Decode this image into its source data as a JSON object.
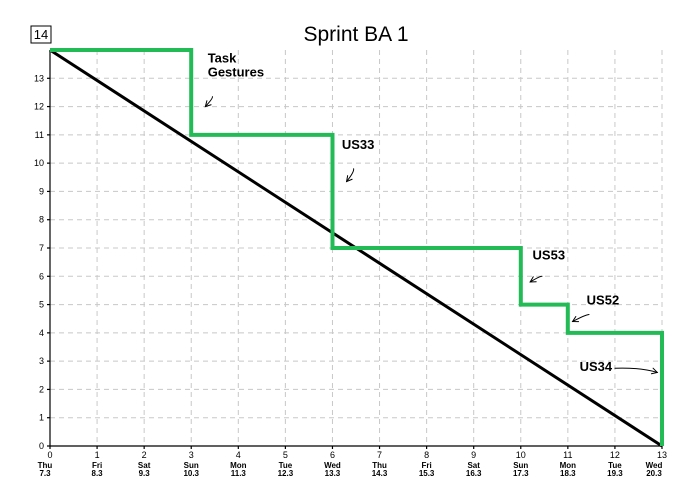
{
  "badge": "14",
  "chart_data": {
    "type": "line",
    "title": "Sprint BA 1",
    "xlabel": "",
    "ylabel": "",
    "xlim": [
      0,
      13
    ],
    "ylim": [
      0,
      14
    ],
    "xticks": [
      0,
      1,
      2,
      3,
      4,
      5,
      6,
      7,
      8,
      9,
      10,
      11,
      12,
      13
    ],
    "yticks": [
      0,
      1,
      2,
      3,
      4,
      5,
      6,
      7,
      8,
      9,
      10,
      11,
      12,
      13
    ],
    "x_day_labels": [
      {
        "day": "Thu",
        "date": "7.3"
      },
      {
        "day": "Fri",
        "date": "8.3"
      },
      {
        "day": "Sat",
        "date": "9.3"
      },
      {
        "day": "Sun",
        "date": "10.3"
      },
      {
        "day": "Mon",
        "date": "11.3"
      },
      {
        "day": "Tue",
        "date": "12.3"
      },
      {
        "day": "Wed",
        "date": "13.3"
      },
      {
        "day": "Thu",
        "date": "14.3"
      },
      {
        "day": "Fri",
        "date": "15.3"
      },
      {
        "day": "Sat",
        "date": "16.3"
      },
      {
        "day": "Sun",
        "date": "17.3"
      },
      {
        "day": "Mon",
        "date": "18.3"
      },
      {
        "day": "Tue",
        "date": "19.3"
      },
      {
        "day": "Wed",
        "date": "20.3"
      }
    ],
    "grid": true,
    "series": [
      {
        "color": "#000000",
        "step": false,
        "points": [
          [
            0,
            14
          ],
          [
            13,
            0
          ]
        ]
      },
      {
        "color": "#22bb55",
        "step": true,
        "points": [
          [
            0,
            14
          ],
          [
            3,
            14
          ],
          [
            3,
            11
          ],
          [
            6,
            11
          ],
          [
            6,
            7
          ],
          [
            10,
            7
          ],
          [
            10,
            5
          ],
          [
            11,
            5
          ],
          [
            11,
            4
          ],
          [
            13,
            4
          ],
          [
            13,
            0
          ]
        ]
      }
    ],
    "annotations": [
      {
        "lines": [
          "Task",
          "Gestures"
        ],
        "x": 3.35,
        "y": 13.55,
        "arrow_from": [
          3.45,
          12.35
        ],
        "arrow_to": [
          3.3,
          12.0
        ]
      },
      {
        "lines": [
          "US33"
        ],
        "x": 6.2,
        "y": 10.5,
        "arrow_from": [
          6.45,
          9.8
        ],
        "arrow_to": [
          6.3,
          9.35
        ]
      },
      {
        "lines": [
          "US53"
        ],
        "x": 10.25,
        "y": 6.6,
        "arrow_from": [
          10.45,
          6.0
        ],
        "arrow_to": [
          10.2,
          5.8
        ]
      },
      {
        "lines": [
          "US52"
        ],
        "x": 11.4,
        "y": 5.0,
        "arrow_from": [
          11.45,
          4.65
        ],
        "arrow_to": [
          11.1,
          4.4
        ]
      },
      {
        "lines": [
          "US34"
        ],
        "x": 11.25,
        "y": 2.65,
        "arrow_from": [
          12.0,
          2.75
        ],
        "arrow_to": [
          12.9,
          2.6
        ]
      }
    ]
  }
}
